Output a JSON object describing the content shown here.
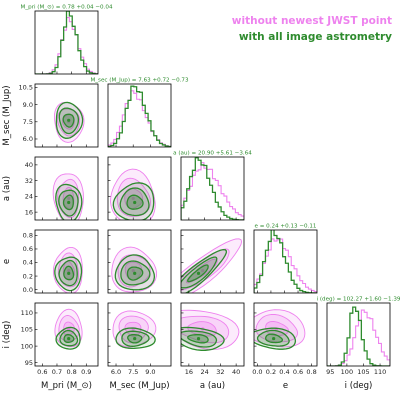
{
  "chart_data": {
    "type": "corner",
    "colors": {
      "series_a": "#ee82ee",
      "series_b": "#2e8b2e"
    },
    "legend": {
      "placement": "top-right",
      "entries": [
        {
          "label": "without newest JWST point",
          "color": "#ee82ee"
        },
        {
          "label": "with all image astrometry",
          "color": "#2e8b2e"
        }
      ]
    },
    "parameters": [
      {
        "key": "mpri",
        "xlabel": "M_pri (M_⊙)",
        "ylabel": "",
        "title": "M_pri (M_⊙) = 0.78 +0.04 −0.04",
        "range": [
          0.55,
          0.98
        ],
        "ticks": [
          0.6,
          0.7,
          0.8,
          0.9
        ],
        "tick_labels": [
          "0.6",
          "0.7",
          "0.8",
          "0.9"
        ],
        "median_b": 0.78,
        "sigma_b": 0.04,
        "median_a": 0.78,
        "sigma_a": 0.045
      },
      {
        "key": "msec",
        "xlabel": "M_sec (M_Jup)",
        "ylabel": "M_sec (M_Jup)",
        "title": "M_sec (M_Jup) = 7.63 +0.72 −0.73",
        "range": [
          5.3,
          10.8
        ],
        "ticks": [
          6.0,
          7.5,
          9.0
        ],
        "tick_labels": [
          "6.0",
          "7.5",
          "9.0"
        ],
        "y_ticks": [
          6.0,
          7.5,
          9.0,
          10.5
        ],
        "y_tick_labels": [
          "6.0",
          "7.5",
          "9.0",
          "10.5"
        ],
        "median_b": 7.63,
        "sigma_b": 0.72,
        "median_a": 7.5,
        "sigma_a": 0.8
      },
      {
        "key": "a",
        "xlabel": "a (au)",
        "ylabel": "a (au)",
        "title": "a (au) = 20.90 +5.61 −3.64",
        "range": [
          12,
          44
        ],
        "ticks": [
          16,
          24,
          32,
          40
        ],
        "tick_labels": [
          "16",
          "24",
          "32",
          "40"
        ],
        "median_b": 20.9,
        "sigma_b": 4.5,
        "median_a": 23.0,
        "sigma_a": 6.5
      },
      {
        "key": "e",
        "xlabel": "e",
        "ylabel": "e",
        "title": "e = 0.24 +0.13 −0.11",
        "range": [
          -0.05,
          0.88
        ],
        "ticks": [
          0.0,
          0.2,
          0.4,
          0.6,
          0.8
        ],
        "tick_labels": [
          "0.0",
          "0.2",
          "0.4",
          "0.6",
          "0.8"
        ],
        "median_b": 0.24,
        "sigma_b": 0.12,
        "median_a": 0.28,
        "sigma_a": 0.16
      },
      {
        "key": "i",
        "xlabel": "i (deg)",
        "ylabel": "i (deg)",
        "title": "i (deg) = 102.27 +1.60 −1.39",
        "range": [
          94,
          113
        ],
        "ticks": [
          95,
          100,
          105,
          110
        ],
        "tick_labels": [
          "95",
          "100",
          "105",
          "110"
        ],
        "median_b": 102.27,
        "sigma_b": 1.5,
        "median_a": 105.2,
        "sigma_a": 2.6
      }
    ]
  }
}
